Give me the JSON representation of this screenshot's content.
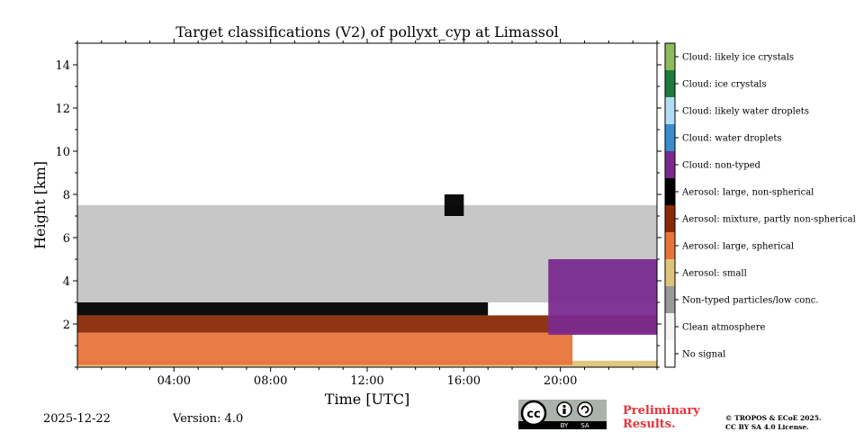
{
  "chart_data": {
    "type": "heatmap",
    "title": "Target classifications (V2) of pollyxt_cyp at Limassol",
    "xlabel": "Time [UTC]",
    "ylabel": "Height [km]",
    "xlim_hours": [
      0,
      24
    ],
    "ylim_km": [
      0,
      15
    ],
    "x_ticks": [
      {
        "value": 4,
        "label": "04:00"
      },
      {
        "value": 8,
        "label": "08:00"
      },
      {
        "value": 12,
        "label": "12:00"
      },
      {
        "value": 16,
        "label": "16:00"
      },
      {
        "value": 20,
        "label": "20:00"
      }
    ],
    "y_ticks": [
      {
        "value": 2,
        "label": "2"
      },
      {
        "value": 4,
        "label": "4"
      },
      {
        "value": 6,
        "label": "6"
      },
      {
        "value": 8,
        "label": "8"
      },
      {
        "value": 10,
        "label": "10"
      },
      {
        "value": 12,
        "label": "12"
      },
      {
        "value": 14,
        "label": "14"
      }
    ],
    "classes": [
      {
        "label": "Cloud: likely ice crystals",
        "color": "#8cba5c"
      },
      {
        "label": "Cloud: ice crystals",
        "color": "#1e7a3c"
      },
      {
        "label": "Cloud: likely water droplets",
        "color": "#b4dcf4"
      },
      {
        "label": "Cloud: water droplets",
        "color": "#3a8ccc"
      },
      {
        "label": "Cloud: non-typed",
        "color": "#7a2a8e"
      },
      {
        "label": "Aerosol: large, non-spherical",
        "color": "#000000"
      },
      {
        "label": "Aerosol: mixture, partly non-spherical",
        "color": "#8a2a04"
      },
      {
        "label": "Aerosol: large, spherical",
        "color": "#e8743a"
      },
      {
        "label": "Aerosol: small",
        "color": "#dcc47c"
      },
      {
        "label": "Non-typed particles/low conc.",
        "color": "#999999"
      },
      {
        "label": "Clean atmosphere",
        "color": "#f4f4f4"
      },
      {
        "label": "No signal",
        "color": "#ffffff"
      }
    ],
    "layers": [
      {
        "class": "Aerosol: small",
        "time_range": [
          0,
          24
        ],
        "height_km": [
          0,
          0.3
        ]
      },
      {
        "class": "Aerosol: large, spherical",
        "time_range": [
          0,
          20.5
        ],
        "height_km": [
          0.1,
          1.6
        ]
      },
      {
        "class": "Aerosol: mixture, partly non-spherical",
        "time_range": [
          0,
          24
        ],
        "height_km": [
          1.6,
          2.4
        ]
      },
      {
        "class": "Aerosol: large, non-spherical",
        "time_range": [
          0,
          17
        ],
        "height_km": [
          2.4,
          3.0
        ]
      },
      {
        "class": "Non-typed particles/low conc.",
        "time_range": [
          0,
          24
        ],
        "height_km": [
          3.0,
          7.5
        ]
      },
      {
        "class": "Aerosol: large, non-spherical",
        "time_range": [
          15.2,
          16
        ],
        "height_km": [
          7.0,
          8.0
        ]
      },
      {
        "class": "Cloud: non-typed",
        "time_range": [
          19.5,
          24
        ],
        "height_km": [
          1.5,
          5.0
        ]
      }
    ]
  },
  "footer": {
    "date": "2025-12-22",
    "version": "Version: 4.0",
    "preliminary_line1": "Preliminary",
    "preliminary_line2": "Results.",
    "copyright_line1": "© TROPOS & ECoE 2025.",
    "copyright_line2": "CC BY SA 4.0 License.",
    "cc_badge": {
      "cc": "cc",
      "by": "BY",
      "sa": "SA"
    }
  }
}
